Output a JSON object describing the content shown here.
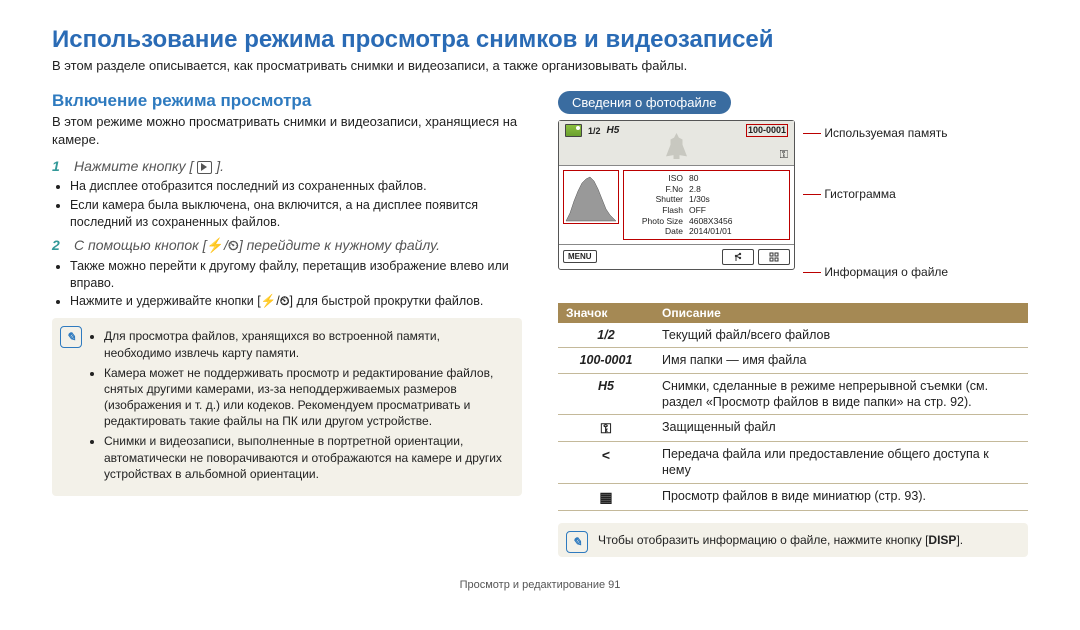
{
  "page": {
    "title": "Использование режима просмотра снимков и видеозаписей",
    "intro": "В этом разделе описывается, как просматривать снимки и видеозаписи, а также организовывать файлы.",
    "footer": "Просмотр и редактирование  91"
  },
  "left": {
    "heading": "Включение режима просмотра",
    "sub": "В этом режиме можно просматривать снимки и видеозаписи, хранящиеся на камере.",
    "step1": "Нажмите кнопку [",
    "step1_end": "].",
    "step1_b1": "На дисплее отобразится последний из сохраненных файлов.",
    "step1_b2": "Если камера была выключена, она включится, а на дисплее появится последний из сохраненных файлов.",
    "step2_a": "С помощью кнопок [",
    "step2_mid": "/",
    "step2_b": "] перейдите к нужному файлу.",
    "step2_b1": "Также можно перейти к другому файлу, перетащив изображение влево или вправо.",
    "step2_b2_a": "Нажмите и удерживайте кнопки [",
    "step2_b2_b": "/",
    "step2_b2_c": "] для быстрой прокрутки файлов.",
    "note1": "Для просмотра файлов, хранящихся во встроенной памяти, необходимо извлечь карту памяти.",
    "note2": "Камера может не поддерживать просмотр и редактирование файлов, снятых другими камерами, из-за неподдерживаемых размеров (изображения и т. д.) или кодеков. Рекомендуем просматривать и редактировать такие файлы на ПК или другом устройстве.",
    "note3": "Снимки и видеозаписи, выполненные в портретной ориентации, автоматически не поворачиваются и отображаются на камере и других устройствах в альбомной ориентации."
  },
  "right": {
    "pill": "Сведения о фотофайле",
    "call_memory": "Используемая память",
    "call_histo": "Гистограмма",
    "call_info": "Информация о файле",
    "screen": {
      "counter": "1/2",
      "h5": "H5",
      "folder": "100-0001",
      "lock": "⚿",
      "menu": "MENU",
      "info_rows": [
        {
          "lab": "ISO",
          "val": "80"
        },
        {
          "lab": "F.No",
          "val": "2.8"
        },
        {
          "lab": "Shutter",
          "val": "1/30s"
        },
        {
          "lab": "Flash",
          "val": "OFF"
        },
        {
          "lab": "Photo Size",
          "val": "4608X3456"
        },
        {
          "lab": "Date",
          "val": "2014/01/01"
        }
      ]
    },
    "table": {
      "head_icon": "Значок",
      "head_desc": "Описание",
      "rows": [
        {
          "icon": "1/2",
          "cls": "ital",
          "desc": "Текущий файл/всего файлов"
        },
        {
          "icon": "100-0001",
          "cls": "ital",
          "desc": "Имя папки — имя файла"
        },
        {
          "icon": "H5",
          "cls": "ital",
          "desc": "Снимки, сделанные в режиме непрерывной съемки (см. раздел «Просмотр файлов в виде папки» на стр. 92)."
        },
        {
          "icon": "⚿",
          "cls": "key-icon",
          "desc": "Защищенный файл"
        },
        {
          "icon": "<",
          "cls": "key-icon",
          "desc": "Передача файла или предоставление общего доступа к нему"
        },
        {
          "icon": "▦",
          "cls": "key-icon",
          "desc": "Просмотр файлов в виде миниатюр (стр. 93)."
        }
      ]
    },
    "note_a": "Чтобы отобразить информацию о файле, нажмите кнопку [",
    "note_disp": "DISP",
    "note_b": "]."
  }
}
